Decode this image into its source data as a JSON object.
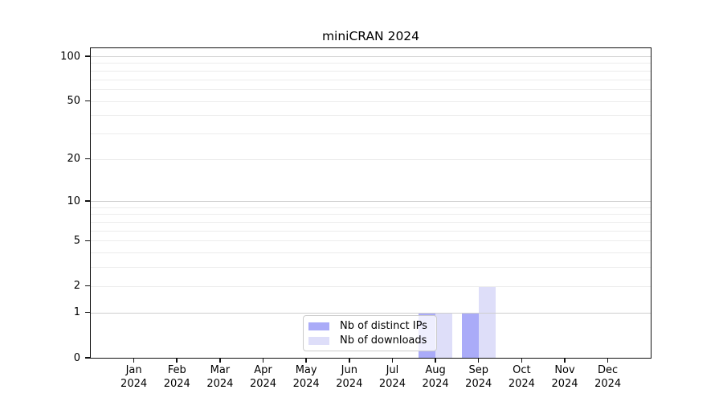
{
  "chart_data": {
    "type": "bar",
    "title": "miniCRAN 2024",
    "categories": [
      "Jan",
      "Feb",
      "Mar",
      "Apr",
      "May",
      "Jun",
      "Jul",
      "Aug",
      "Sep",
      "Oct",
      "Nov",
      "Dec"
    ],
    "category_year": "2024",
    "series": [
      {
        "name": "Nb of distinct IPs",
        "color": "#aaabf8",
        "values": [
          0,
          0,
          0,
          0,
          0,
          0,
          0,
          1,
          1,
          0,
          0,
          0
        ]
      },
      {
        "name": "Nb of downloads",
        "color": "#dedef9",
        "values": [
          0,
          0,
          0,
          0,
          0,
          0,
          0,
          1,
          2,
          0,
          0,
          0
        ]
      }
    ],
    "xlabel": "",
    "ylabel": "",
    "ylim": [
      0,
      100
    ],
    "yscale": "log1p",
    "y_ticks": [
      0,
      1,
      2,
      5,
      10,
      20,
      50,
      100
    ],
    "y_major_gridlines": [
      1,
      10,
      100
    ],
    "y_minor_gridlines": [
      2,
      3,
      4,
      5,
      6,
      7,
      8,
      9,
      20,
      30,
      40,
      50,
      60,
      70,
      80,
      90
    ],
    "grid": "horizontal only",
    "legend_position": "lower center inside plot"
  },
  "colors": {
    "background": "#ffffff",
    "axis": "#111111",
    "major_grid": "#cfcfcf",
    "minor_grid": "#ececec",
    "legend_border": "#cccccc",
    "legend_background": "rgba(255,255,255,0.8)",
    "series_ips": "#aaabf8",
    "series_downloads": "#dedef9"
  }
}
